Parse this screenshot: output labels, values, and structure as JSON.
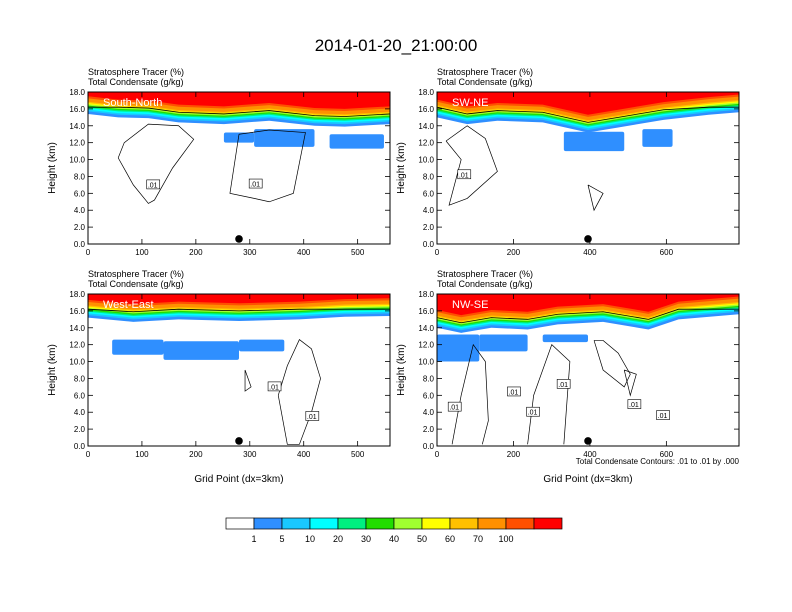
{
  "title": "2014-01-20_21:00:00",
  "colorbar": {
    "levels": [
      "1",
      "5",
      "10",
      "20",
      "30",
      "40",
      "50",
      "60",
      "70",
      "100"
    ],
    "colors": [
      "#ffffff",
      "#2f8fff",
      "#19c8ff",
      "#00ffff",
      "#00f080",
      "#22dd00",
      "#a0ff30",
      "#ffff00",
      "#ffc000",
      "#ff9000",
      "#ff5000",
      "#ff0000"
    ]
  },
  "footnote": "Total Condensate Contours: .01 to .01 by .000",
  "chart_data": [
    {
      "type": "heatmap",
      "panel": "South-North",
      "left_title_1": "Stratosphere Tracer   (%)",
      "left_title_2": "Total Condensate   (g/kg)",
      "ylabel": "Height (km)",
      "xlabel": "",
      "xlim": [
        0,
        560
      ],
      "ylim": [
        0,
        18
      ],
      "xticks": [
        "0",
        "100",
        "200",
        "300",
        "400",
        "500"
      ],
      "xtick_values": [
        0,
        100,
        200,
        300,
        400,
        500
      ],
      "yticks": [
        "0.0",
        "2.0",
        "4.0",
        "6.0",
        "8.0",
        "10.0",
        "12.0",
        "14.0",
        "16.0",
        "18.0"
      ],
      "point_marker": [
        280,
        0.6
      ],
      "contour_labels": [
        ".01",
        ".01"
      ],
      "contour_label_xy": [
        [
          120,
          7.0
        ],
        [
          310,
          7.1
        ]
      ]
    },
    {
      "type": "heatmap",
      "panel": "SW-NE",
      "left_title_1": "Stratosphere Tracer   (%)",
      "left_title_2": "Total Condensate   (g/kg)",
      "ylabel": "Height (km)",
      "xlabel": "",
      "xlim": [
        0,
        790
      ],
      "ylim": [
        0,
        18
      ],
      "xticks": [
        "0",
        "200",
        "400",
        "600"
      ],
      "xtick_values": [
        0,
        200,
        400,
        600
      ],
      "yticks": [
        "0.0",
        "2.0",
        "4.0",
        "6.0",
        "8.0",
        "10.0",
        "12.0",
        "14.0",
        "16.0",
        "18.0"
      ],
      "point_marker": [
        395,
        0.6
      ],
      "contour_labels": [
        ".01"
      ],
      "contour_label_xy": [
        [
          70,
          8.2
        ]
      ]
    },
    {
      "type": "heatmap",
      "panel": "West-East",
      "left_title_1": "Stratosphere Tracer   (%)",
      "left_title_2": "Total Condensate   (g/kg)",
      "ylabel": "Height (km)",
      "xlabel": "Grid Point (dx=3km)",
      "xlim": [
        0,
        560
      ],
      "ylim": [
        0,
        18
      ],
      "xticks": [
        "0",
        "100",
        "200",
        "300",
        "400",
        "500"
      ],
      "xtick_values": [
        0,
        100,
        200,
        300,
        400,
        500
      ],
      "yticks": [
        "0.0",
        "2.0",
        "4.0",
        "6.0",
        "8.0",
        "10.0",
        "12.0",
        "14.0",
        "16.0",
        "18.0"
      ],
      "point_marker": [
        280,
        0.6
      ],
      "contour_labels": [
        ".01",
        ".01"
      ],
      "contour_label_xy": [
        [
          345,
          7.0
        ],
        [
          415,
          3.5
        ]
      ]
    },
    {
      "type": "heatmap",
      "panel": "NW-SE",
      "left_title_1": "Stratosphere Tracer   (%)",
      "left_title_2": "Total Condensate   (g/kg)",
      "ylabel": "Height (km)",
      "xlabel": "Grid Point (dx=3km)",
      "xlim": [
        0,
        790
      ],
      "ylim": [
        0,
        18
      ],
      "xticks": [
        "0",
        "200",
        "400",
        "600"
      ],
      "xtick_values": [
        0,
        200,
        400,
        600
      ],
      "yticks": [
        "0.0",
        "2.0",
        "4.0",
        "6.0",
        "8.0",
        "10.0",
        "12.0",
        "14.0",
        "16.0",
        "18.0"
      ],
      "point_marker": [
        395,
        0.6
      ],
      "contour_labels": [
        ".01",
        ".01",
        ".01",
        ".01",
        ".01",
        ".01"
      ],
      "contour_label_xy": [
        [
          45,
          4.6
        ],
        [
          200,
          6.4
        ],
        [
          330,
          7.3
        ],
        [
          250,
          4.0
        ],
        [
          515,
          4.9
        ],
        [
          590,
          3.6
        ]
      ]
    }
  ]
}
